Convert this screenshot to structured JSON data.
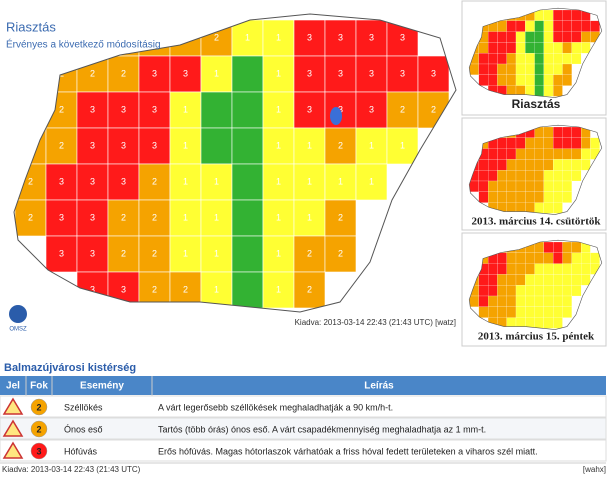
{
  "header": {
    "title": "Riasztás",
    "subtitle": "Érvényes a következő módosításig"
  },
  "map": {
    "levels": [
      [
        null,
        null,
        2,
        2,
        2,
        2,
        2,
        1,
        1,
        3,
        3,
        3,
        3,
        null
      ],
      [
        null,
        2,
        2,
        2,
        3,
        3,
        1,
        0,
        1,
        3,
        3,
        3,
        3,
        3
      ],
      [
        null,
        2,
        3,
        3,
        3,
        1,
        0,
        0,
        1,
        3,
        3,
        3,
        2,
        2
      ],
      [
        2,
        2,
        3,
        3,
        3,
        1,
        0,
        0,
        1,
        1,
        2,
        1,
        1,
        null
      ],
      [
        2,
        3,
        3,
        3,
        2,
        1,
        1,
        0,
        1,
        1,
        1,
        1,
        null,
        null
      ],
      [
        2,
        3,
        3,
        2,
        2,
        1,
        1,
        0,
        1,
        1,
        2,
        null,
        null,
        null
      ],
      [
        null,
        3,
        3,
        2,
        2,
        1,
        1,
        0,
        1,
        2,
        2,
        null,
        null,
        null
      ],
      [
        null,
        null,
        3,
        3,
        2,
        2,
        1,
        0,
        1,
        2,
        null,
        null,
        null,
        null
      ]
    ],
    "colors": [
      "#33b233",
      "#ffff33",
      "#f5a300",
      "#ff1a1a"
    ],
    "issued": "Kiadva: 2013-03-14 22:43 (21:43 UTC) [watz]",
    "logo": "OMSZ"
  },
  "thumbnails": [
    {
      "caption": "Riasztás",
      "levels": [
        [
          null,
          null,
          2,
          2,
          2,
          2,
          2,
          1,
          1,
          3,
          3,
          3,
          3,
          null
        ],
        [
          null,
          2,
          2,
          2,
          3,
          3,
          1,
          0,
          1,
          3,
          3,
          3,
          3,
          3
        ],
        [
          null,
          2,
          3,
          3,
          3,
          1,
          0,
          0,
          1,
          3,
          3,
          3,
          2,
          2
        ],
        [
          2,
          2,
          3,
          3,
          3,
          1,
          0,
          0,
          1,
          1,
          2,
          1,
          1,
          null
        ],
        [
          2,
          3,
          3,
          3,
          2,
          1,
          1,
          0,
          1,
          1,
          1,
          1,
          null,
          null
        ],
        [
          2,
          3,
          3,
          2,
          2,
          1,
          1,
          0,
          1,
          1,
          2,
          null,
          null,
          null
        ],
        [
          null,
          3,
          3,
          2,
          2,
          1,
          1,
          0,
          1,
          2,
          2,
          null,
          null,
          null
        ],
        [
          null,
          null,
          3,
          3,
          2,
          2,
          1,
          0,
          1,
          2,
          null,
          null,
          null,
          null
        ]
      ]
    },
    {
      "caption": "2013. március 14. csütörtök",
      "levels": [
        [
          null,
          null,
          2,
          2,
          2,
          3,
          3,
          2,
          2,
          3,
          3,
          3,
          2,
          null
        ],
        [
          null,
          2,
          3,
          3,
          3,
          3,
          2,
          2,
          2,
          3,
          3,
          3,
          2,
          1
        ],
        [
          null,
          3,
          3,
          3,
          3,
          2,
          2,
          2,
          2,
          2,
          2,
          2,
          1,
          1
        ],
        [
          3,
          3,
          3,
          3,
          2,
          2,
          2,
          2,
          2,
          1,
          1,
          1,
          1,
          null
        ],
        [
          3,
          3,
          3,
          2,
          2,
          2,
          2,
          2,
          1,
          1,
          1,
          1,
          null,
          null
        ],
        [
          3,
          3,
          2,
          2,
          2,
          2,
          2,
          2,
          1,
          1,
          1,
          null,
          null,
          null
        ],
        [
          null,
          3,
          2,
          2,
          2,
          2,
          2,
          2,
          1,
          1,
          1,
          null,
          null,
          null
        ],
        [
          null,
          null,
          2,
          2,
          2,
          2,
          2,
          1,
          1,
          1,
          null,
          null,
          null,
          null
        ]
      ]
    },
    {
      "caption": "2013. március 15. péntek",
      "levels": [
        [
          null,
          null,
          2,
          2,
          2,
          2,
          2,
          2,
          3,
          3,
          2,
          2,
          1,
          null
        ],
        [
          null,
          2,
          3,
          3,
          2,
          2,
          2,
          2,
          2,
          3,
          2,
          1,
          1,
          1
        ],
        [
          null,
          3,
          3,
          3,
          2,
          2,
          2,
          1,
          1,
          1,
          1,
          1,
          1,
          1
        ],
        [
          2,
          3,
          3,
          2,
          2,
          2,
          1,
          1,
          1,
          1,
          1,
          1,
          1,
          null
        ],
        [
          2,
          3,
          3,
          2,
          2,
          1,
          1,
          1,
          1,
          1,
          1,
          1,
          null,
          null
        ],
        [
          2,
          3,
          2,
          2,
          2,
          1,
          1,
          1,
          1,
          1,
          1,
          null,
          null,
          null
        ],
        [
          null,
          2,
          2,
          2,
          2,
          1,
          1,
          1,
          1,
          1,
          1,
          null,
          null,
          null
        ],
        [
          null,
          null,
          2,
          2,
          1,
          1,
          1,
          1,
          1,
          1,
          null,
          null,
          null,
          null
        ]
      ]
    }
  ],
  "table": {
    "title": "Balmazújvárosi kistérség",
    "columns": [
      "Jel",
      "Fok",
      "Esemény",
      "Leírás"
    ],
    "rows": [
      {
        "level": 2,
        "event": "Széllökés",
        "description": "A várt legerősebb széllökések meghaladhatják a 90 km/h-t."
      },
      {
        "level": 2,
        "event": "Ónos eső",
        "description": "Tartós (több órás) ónos eső. A várt csapadékmennyiség meghaladhatja az 1 mm-t."
      },
      {
        "level": 3,
        "event": "Hófúvás",
        "description": "Erős hófúvás. Magas hótorlaszok várhatóak a friss hóval fedett területeken a viharos szél miatt."
      }
    ]
  },
  "footer": {
    "issued": "Kiadva: 2013-03-14 22:43 (21:43 UTC)",
    "code": "[wahx]"
  }
}
